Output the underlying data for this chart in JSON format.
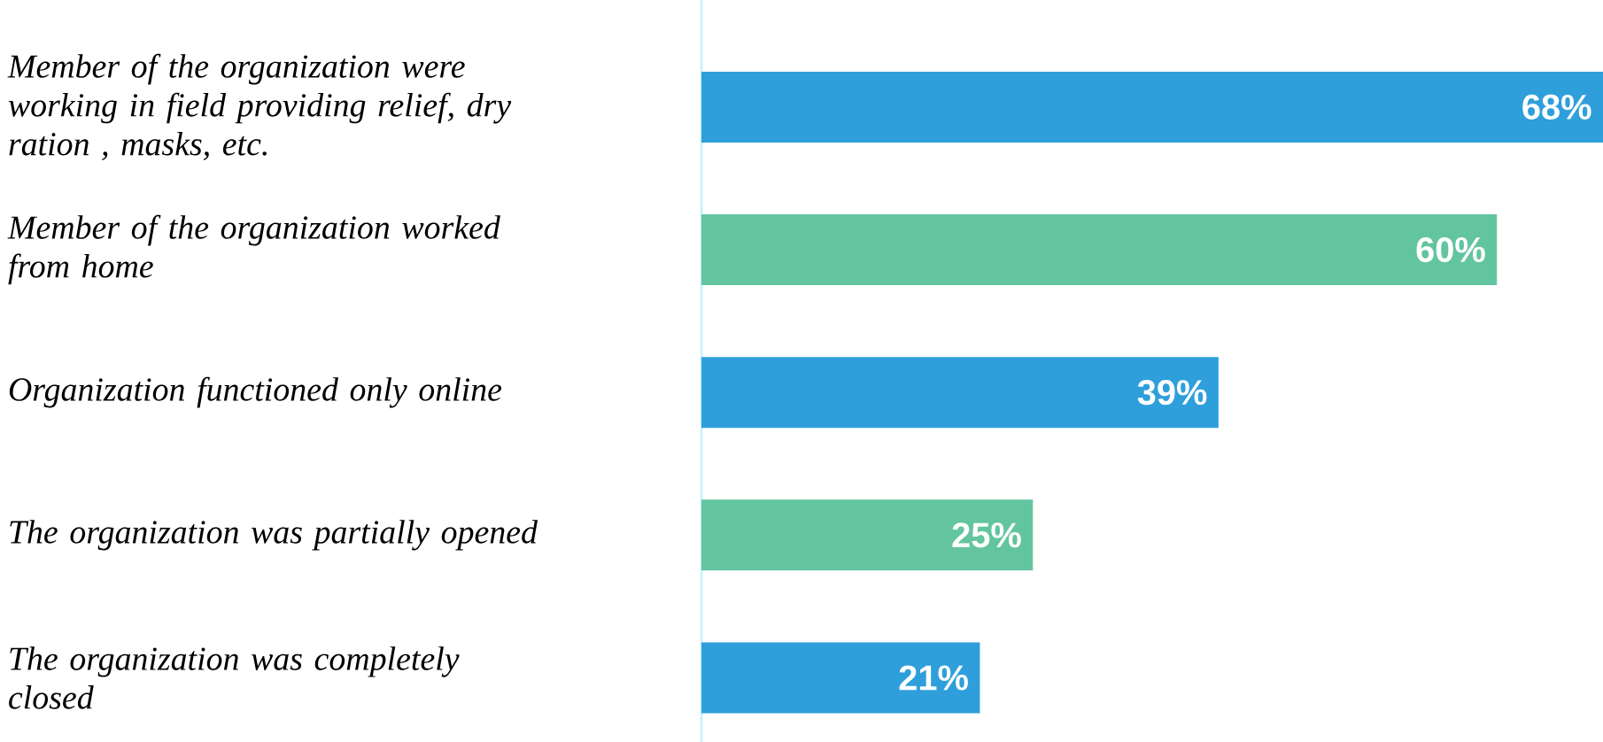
{
  "chart_data": {
    "type": "bar",
    "orientation": "horizontal",
    "categories": [
      "Member of the organization were working in field  providing relief, dry ration , masks, etc.",
      "Member of the organization worked from home",
      "Organization functioned only online",
      "The organization was partially opened",
      "The organization was completely closed"
    ],
    "values": [
      68,
      60,
      39,
      25,
      21
    ],
    "value_labels": [
      "68%",
      "60%",
      "39%",
      "25%",
      "21%"
    ],
    "colors": [
      "#2e9fdb",
      "#63c4a0",
      "#2e9fdb",
      "#63c4a0",
      "#2e9fdb"
    ]
  }
}
